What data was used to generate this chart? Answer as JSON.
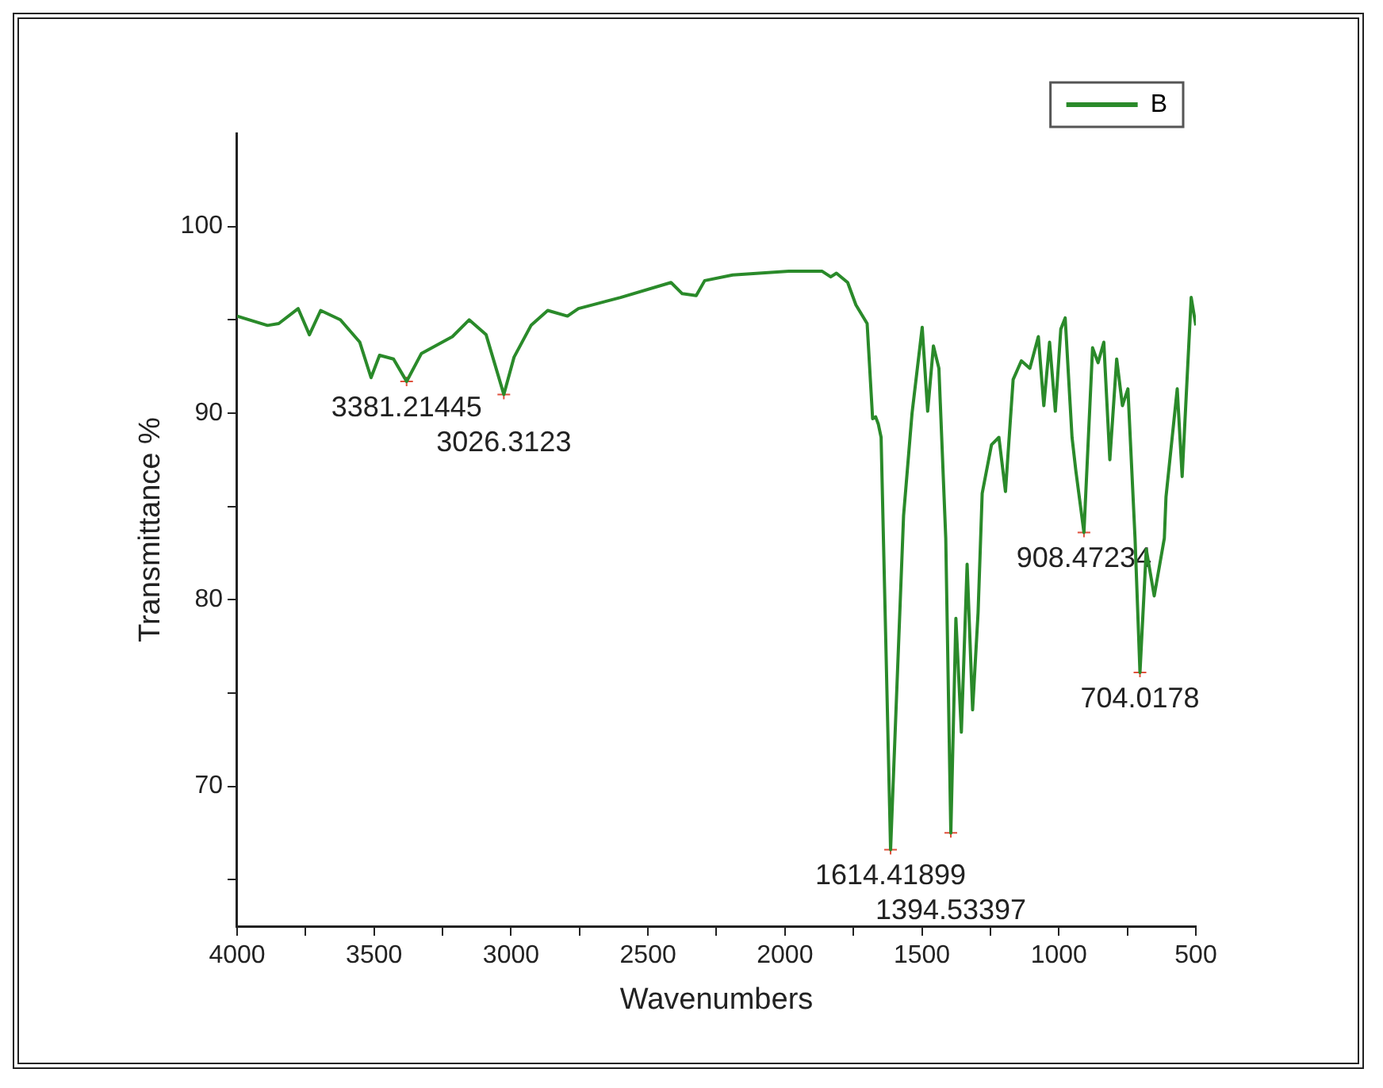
{
  "chart_data": {
    "type": "line",
    "xlabel": "Wavenumbers",
    "ylabel": "Transmittance %",
    "legend": "top right",
    "grid": false,
    "marker": "none",
    "line_style": "solid",
    "xlim": [
      4000,
      500
    ],
    "ylim": [
      62.5,
      105
    ],
    "xticks": [
      4000,
      {
        "value": 3750,
        "label": null
      },
      3500,
      {
        "value": 3250,
        "label": null
      },
      3000,
      {
        "value": 2750,
        "label": null
      },
      2500,
      {
        "value": 2250,
        "label": null
      },
      2000,
      {
        "value": 1750,
        "label": null
      },
      1500,
      {
        "value": 1250,
        "label": null
      },
      1000,
      {
        "value": 750,
        "label": null
      },
      500
    ],
    "yticks": [
      {
        "value": 65,
        "label": null
      },
      70,
      {
        "value": 75,
        "label": null
      },
      80,
      {
        "value": 85,
        "label": null
      },
      90,
      {
        "value": 95,
        "label": null
      },
      100
    ],
    "x": [
      4000,
      3889,
      3848,
      3777,
      3736,
      3695,
      3623,
      3552,
      3511,
      3480,
      3429,
      3381.2,
      3327,
      3214,
      3153,
      3091,
      3026.3,
      2989,
      2927,
      2866,
      2794,
      2754,
      2600,
      2416,
      2375,
      2324,
      2293,
      2191,
      1986,
      1864,
      1833,
      1812,
      1771,
      1741,
      1700,
      1680,
      1669,
      1659,
      1649,
      1614.4,
      1567,
      1536,
      1499,
      1479,
      1458,
      1438,
      1413,
      1394.5,
      1376,
      1356,
      1335,
      1315,
      1295,
      1280,
      1246,
      1219,
      1195,
      1167,
      1137,
      1106,
      1075,
      1055,
      1034,
      1013,
      993,
      977,
      952,
      938,
      908.5,
      877,
      857,
      836,
      814,
      789,
      768,
      748,
      722,
      704,
      681,
      652,
      615,
      609,
      568,
      550,
      517,
      500
    ],
    "series": [
      {
        "name": "B",
        "color": "#2a8a2a",
        "values": [
          95.2,
          94.7,
          94.8,
          95.6,
          94.2,
          95.5,
          95.0,
          93.8,
          91.9,
          93.1,
          92.9,
          91.7,
          93.2,
          94.1,
          95.0,
          94.2,
          91.0,
          93.0,
          94.7,
          95.5,
          95.2,
          95.6,
          96.2,
          97.0,
          96.4,
          96.3,
          97.1,
          97.4,
          97.6,
          97.6,
          97.3,
          97.5,
          97.0,
          95.8,
          94.8,
          89.7,
          89.8,
          89.4,
          88.7,
          66.6,
          84.5,
          90.0,
          94.6,
          90.1,
          93.6,
          92.4,
          83.3,
          67.5,
          79.0,
          72.9,
          81.9,
          74.1,
          79.3,
          85.7,
          88.3,
          88.7,
          85.8,
          91.8,
          92.8,
          92.4,
          94.1,
          90.4,
          93.8,
          90.1,
          94.5,
          95.1,
          88.7,
          86.9,
          83.6,
          93.5,
          92.7,
          93.8,
          87.5,
          92.9,
          90.4,
          91.3,
          83.3,
          76.1,
          82.7,
          80.2,
          83.3,
          85.5,
          91.3,
          86.6,
          96.2,
          94.7
        ]
      }
    ],
    "annotations": [
      {
        "text": "3381.21445",
        "x": 3381.21445,
        "y": 91.7
      },
      {
        "text": "3026.3123",
        "x": 3026.3123,
        "y": 91.0
      },
      {
        "text": "1614.41899",
        "x": 1614.41899,
        "y": 66.6
      },
      {
        "text": "1394.53397",
        "x": 1394.53397,
        "y": 67.5
      },
      {
        "text": "908.47234",
        "x": 908.47234,
        "y": 83.6
      },
      {
        "text": "704.0178",
        "x": 704.0178,
        "y": 76.1
      }
    ]
  }
}
